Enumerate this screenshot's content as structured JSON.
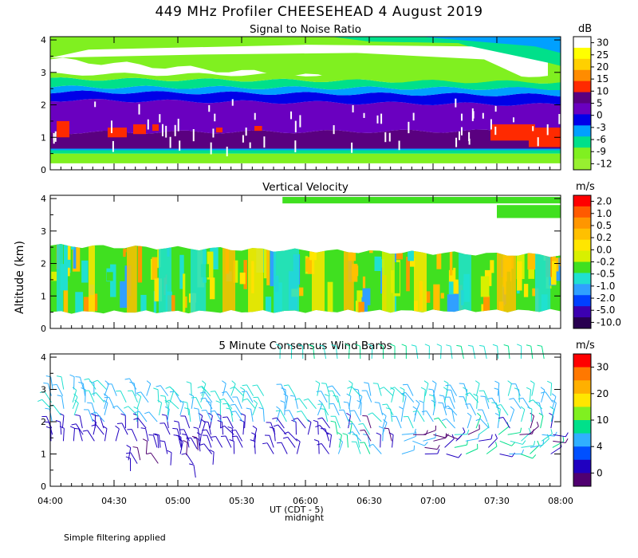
{
  "chart_data": {
    "title": "449 MHz Profiler CHEESEHEAD   4 August 2019",
    "ylabel": "Altitude (km)",
    "xlabel": "UT   (CDT - 5)",
    "xlabel_sub": "midnight",
    "x_ticks": [
      "04:00",
      "04:30",
      "05:00",
      "05:30",
      "06:00",
      "06:30",
      "07:00",
      "07:30",
      "08:00"
    ],
    "x_range": [
      "04:00",
      "08:00"
    ],
    "y_ticks": [
      "0",
      "1",
      "2",
      "3",
      "4"
    ],
    "ylim": [
      0,
      4.1
    ],
    "footnote": "Simple filtering applied",
    "panels": [
      {
        "type": "heatmap",
        "title": "Signal to Noise Ratio",
        "unit": "dB",
        "colorbar": {
          "labels": [
            "30",
            "25",
            "20",
            "15",
            "10",
            "5",
            "0",
            "-3",
            "-6",
            "-9",
            "-12"
          ],
          "colors": [
            "#ffffff",
            "#ffff00",
            "#ffd000",
            "#ff8c00",
            "#ff2a00",
            "#5a0080",
            "#6a00c0",
            "#0000e8",
            "#00a0ff",
            "#00e08a",
            "#80f020",
            "#98f030"
          ]
        },
        "layers": [
          {
            "name": "surface clutter",
            "ybottom": [
              0.2,
              0.2
            ],
            "ytop": [
              0.5,
              0.5
            ],
            "color": "#80f020"
          },
          {
            "name": "-9 dB band",
            "ybottom": [
              0.5,
              0.5
            ],
            "ytop": [
              0.6,
              0.6
            ],
            "color": "#00e08a"
          },
          {
            "name": "-6 dB band",
            "ybottom": [
              0.6,
              0.6
            ],
            "ytop": [
              0.65,
              0.65
            ],
            "color": "#00a0ff"
          },
          {
            "name": "deep purple",
            "ybottom": [
              0.65,
              0.65
            ],
            "ytop": [
              1.15,
              1.2
            ],
            "color": "#5a0080"
          },
          {
            "name": "purple",
            "ybottom": [
              1.15,
              1.2
            ],
            "ytop": [
              2.15,
              2.0
            ],
            "color": "#6a00c0"
          },
          {
            "name": "blue",
            "ybottom": [
              2.15,
              2.0
            ],
            "ytop": [
              2.4,
              2.3
            ],
            "color": "#0000e8"
          },
          {
            "name": "light blue",
            "ybottom": [
              2.4,
              2.3
            ],
            "ytop": [
              2.55,
              2.5
            ],
            "color": "#00a0ff"
          },
          {
            "name": "green",
            "ybottom": [
              2.55,
              2.5
            ],
            "ytop": [
              2.8,
              2.7
            ],
            "color": "#00e08a"
          },
          {
            "name": "lime",
            "ybottom": [
              2.8,
              2.7
            ],
            "ytop": [
              2.95,
              2.9
            ],
            "color": "#80f020"
          }
        ],
        "upper_layer": {
          "ybottom": [
            3.4,
            2.4
          ],
          "ytop": [
            4.1,
            4.1
          ],
          "color_outer": "#80f020",
          "color_mid": "#00e08a",
          "color_inner": "#00a0ff",
          "x_start_hours": 0.0
        },
        "red_patches": [
          {
            "x_hours": [
              0.05,
              0.15
            ],
            "y": [
              1.0,
              1.5
            ]
          },
          {
            "x_hours": [
              0.45,
              0.6
            ],
            "y": [
              1.0,
              1.3
            ]
          },
          {
            "x_hours": [
              0.65,
              0.75
            ],
            "y": [
              1.1,
              1.4
            ]
          },
          {
            "x_hours": [
              0.8,
              0.85
            ],
            "y": [
              1.2,
              1.4
            ]
          },
          {
            "x_hours": [
              1.3,
              1.35
            ],
            "y": [
              1.15,
              1.3
            ]
          },
          {
            "x_hours": [
              1.6,
              1.66
            ],
            "y": [
              1.2,
              1.35
            ]
          },
          {
            "x_hours": [
              3.45,
              3.8
            ],
            "y": [
              0.9,
              1.4
            ]
          },
          {
            "x_hours": [
              3.75,
              4.0
            ],
            "y": [
              0.7,
              1.3
            ]
          }
        ]
      },
      {
        "type": "heatmap",
        "title": "Vertical Velocity",
        "unit": "m/s",
        "colorbar": {
          "labels": [
            "2.0",
            "1.0",
            "0.5",
            "0.2",
            "0.0",
            "-0.2",
            "-0.5",
            "-1.0",
            "-2.0",
            "-5.0",
            "-10.0"
          ],
          "colors": [
            "#ff0000",
            "#ff5a00",
            "#ff9600",
            "#ffc000",
            "#ffe600",
            "#d8f000",
            "#40e020",
            "#20e0d0",
            "#30a0ff",
            "#0040ff",
            "#3c00b0",
            "#280050"
          ]
        },
        "layers": [
          {
            "name": "data region",
            "ybottom": [
              0.5,
              0.55
            ],
            "ytop": [
              2.55,
              2.25
            ],
            "color": "#40e020"
          }
        ],
        "upper_band": {
          "ybottom": [
            3.8,
            3.2
          ],
          "ytop": [
            4.05,
            4.05
          ],
          "x_start_hours": 1.82,
          "color": "#40e020"
        },
        "streaks": [
          {
            "x_hours": 0.05,
            "width_hours": 0.05,
            "color": "#20e0d0"
          },
          {
            "x_hours": 0.3,
            "width_hours": 0.05,
            "color": "#ffe600"
          },
          {
            "x_hours": 0.6,
            "width_hours": 0.08,
            "color": "#ffc000"
          },
          {
            "x_hours": 0.85,
            "width_hours": 0.1,
            "color": "#20e0d0"
          },
          {
            "x_hours": 1.1,
            "width_hours": 0.12,
            "color": "#20e0d0"
          },
          {
            "x_hours": 1.35,
            "width_hours": 0.1,
            "color": "#ffc000"
          },
          {
            "x_hours": 1.55,
            "width_hours": 0.12,
            "color": "#ffe600"
          },
          {
            "x_hours": 1.75,
            "width_hours": 0.2,
            "color": "#20e0d0"
          },
          {
            "x_hours": 2.05,
            "width_hours": 0.1,
            "color": "#ffe600"
          },
          {
            "x_hours": 2.3,
            "width_hours": 0.08,
            "color": "#ffc000"
          },
          {
            "x_hours": 2.6,
            "width_hours": 0.1,
            "color": "#d8f000"
          },
          {
            "x_hours": 2.85,
            "width_hours": 0.1,
            "color": "#ffe600"
          },
          {
            "x_hours": 3.2,
            "width_hours": 0.1,
            "color": "#20e0d0"
          },
          {
            "x_hours": 3.5,
            "width_hours": 0.15,
            "color": "#ffc000"
          },
          {
            "x_hours": 3.8,
            "width_hours": 0.12,
            "color": "#20e0d0"
          }
        ]
      },
      {
        "type": "wind_barbs",
        "title": "5 Minute Consensus Wind Barbs",
        "unit": "m/s",
        "colorbar": {
          "labels": [
            "30",
            "20",
            "10",
            "4",
            "0"
          ],
          "colors": [
            "#ff0000",
            "#ff7800",
            "#ffb000",
            "#ffe600",
            "#80f020",
            "#00e08a",
            "#30b0ff",
            "#0050ff",
            "#2000c0",
            "#500070"
          ]
        },
        "barbs": {
          "x_range_hours": [
            0.0,
            4.0
          ],
          "levels_km": [
            0.3,
            0.4,
            0.6,
            0.8,
            1.0,
            1.2,
            1.4,
            1.6,
            1.8,
            2.0,
            2.2,
            2.4,
            2.6,
            2.8,
            3.0
          ],
          "upper_levels_km": [
            3.8,
            4.0
          ],
          "upper_x_range_hours": [
            2.0,
            4.0
          ]
        }
      }
    ]
  }
}
